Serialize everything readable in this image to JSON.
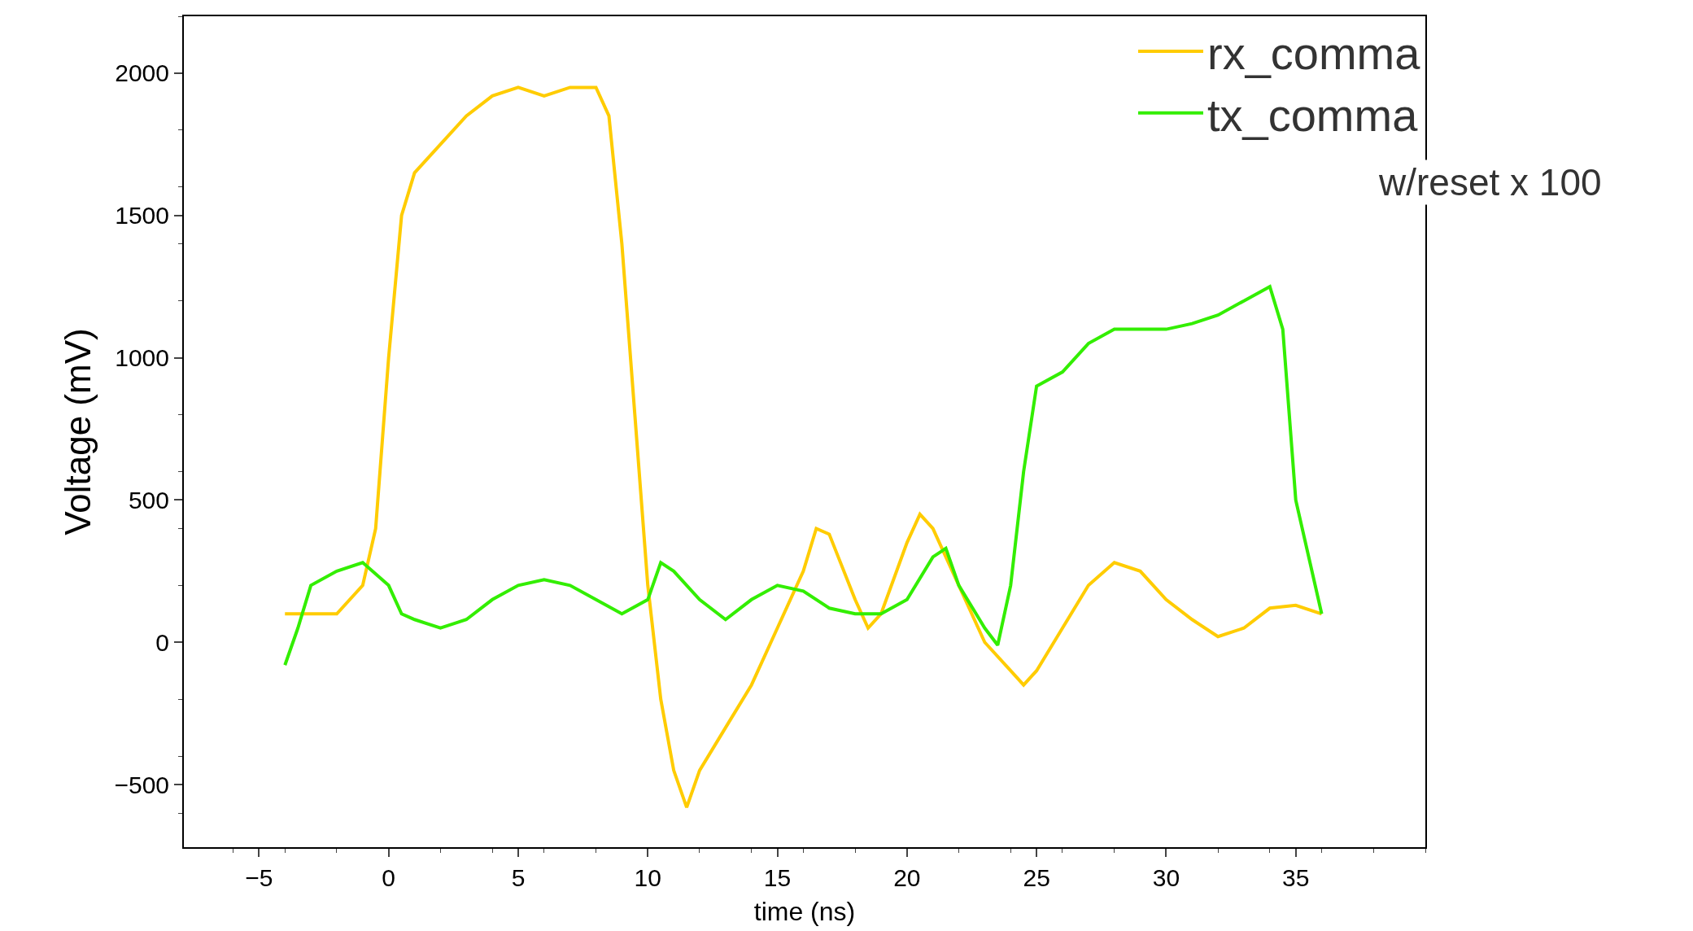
{
  "chart_data": {
    "type": "line",
    "xlabel": "time (ns)",
    "ylabel": "Voltage (mV)",
    "xlim": [
      -7.9,
      40
    ],
    "ylim": [
      -720,
      2200
    ],
    "xticks": [
      -5,
      0,
      5,
      10,
      15,
      20,
      25,
      30,
      35
    ],
    "yticks": [
      -500,
      0,
      500,
      1000,
      1500,
      2000
    ],
    "grid": false,
    "legend": "top right",
    "marker": "none",
    "line_style": "solid",
    "annotations": [
      "w/reset x 100"
    ],
    "series": [
      {
        "name": "rx_comma",
        "color": "#ffcc00",
        "x": [
          -4,
          -2,
          -1,
          -0.5,
          0,
          0.5,
          1,
          2,
          3,
          4,
          5,
          6,
          7,
          8,
          8.5,
          9,
          9.5,
          10,
          10.5,
          11,
          11.5,
          12,
          13,
          14,
          15,
          16,
          16.5,
          17,
          18,
          18.5,
          19,
          20,
          20.5,
          21,
          22,
          23,
          24,
          24.5,
          25,
          26,
          27,
          28,
          29,
          30,
          31,
          32,
          33,
          34,
          35,
          36
        ],
        "values": [
          100,
          100,
          200,
          400,
          1000,
          1500,
          1650,
          1750,
          1850,
          1920,
          1950,
          1920,
          1950,
          1950,
          1850,
          1400,
          800,
          200,
          -200,
          -450,
          -580,
          -450,
          -300,
          -150,
          50,
          250,
          400,
          380,
          150,
          50,
          100,
          350,
          450,
          400,
          200,
          0,
          -100,
          -150,
          -100,
          50,
          200,
          280,
          250,
          150,
          80,
          20,
          50,
          120,
          130,
          100
        ]
      },
      {
        "name": "tx_comma",
        "color": "#33ee00",
        "x": [
          -4,
          -3.5,
          -3,
          -2,
          -1,
          0,
          0.5,
          1,
          2,
          3,
          4,
          5,
          6,
          7,
          8,
          9,
          10,
          10.5,
          11,
          12,
          13,
          14,
          15,
          16,
          17,
          18,
          19,
          20,
          21,
          21.5,
          22,
          23,
          23.5,
          24,
          24.5,
          25,
          26,
          27,
          28,
          29,
          30,
          31,
          32,
          33,
          34,
          34.5,
          35,
          36
        ],
        "values": [
          -80,
          50,
          200,
          250,
          280,
          200,
          100,
          80,
          50,
          80,
          150,
          200,
          220,
          200,
          150,
          100,
          150,
          280,
          250,
          150,
          80,
          150,
          200,
          180,
          120,
          100,
          100,
          150,
          300,
          330,
          200,
          50,
          -10,
          200,
          600,
          900,
          950,
          1050,
          1100,
          1100,
          1100,
          1120,
          1150,
          1200,
          1250,
          1100,
          500,
          100
        ]
      }
    ]
  }
}
